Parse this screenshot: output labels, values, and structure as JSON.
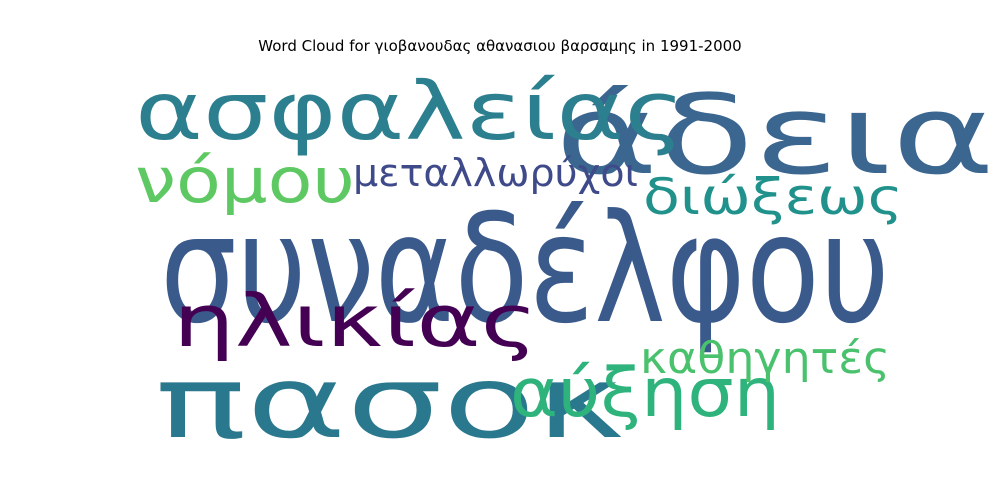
{
  "title": "Word Cloud for γιοβανουδας αθανασιου βαρσαμης in 1991-2000",
  "chart_data": {
    "type": "wordcloud",
    "title": "Word Cloud for γιοβανουδας αθανασιου βαρσαμης in 1991-2000",
    "words": [
      {
        "text": "συναδέλφου",
        "weight": 1.0,
        "color": "#3b5a8c"
      },
      {
        "text": "άδεια",
        "weight": 0.83,
        "color": "#3b6690"
      },
      {
        "text": "πασοκ",
        "weight": 0.78,
        "color": "#2a788e"
      },
      {
        "text": "ασφαλείας",
        "weight": 0.62,
        "color": "#2c7f8e"
      },
      {
        "text": "αύξηση",
        "weight": 0.52,
        "color": "#2eb37c"
      },
      {
        "text": "ηλικίας",
        "weight": 0.5,
        "color": "#440154"
      },
      {
        "text": "νόμου",
        "weight": 0.46,
        "color": "#5ec962"
      },
      {
        "text": "διώξεως",
        "weight": 0.38,
        "color": "#21918c"
      },
      {
        "text": "καθηγητές",
        "weight": 0.33,
        "color": "#4ac16d"
      },
      {
        "text": "μεταλλωρύχοι",
        "weight": 0.28,
        "color": "#3e4a89"
      }
    ]
  }
}
